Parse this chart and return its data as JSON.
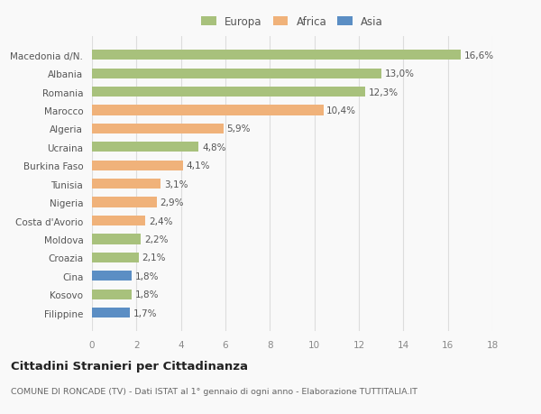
{
  "countries": [
    "Filippine",
    "Kosovo",
    "Cina",
    "Croazia",
    "Moldova",
    "Costa d'Avorio",
    "Nigeria",
    "Tunisia",
    "Burkina Faso",
    "Ucraina",
    "Algeria",
    "Marocco",
    "Romania",
    "Albania",
    "Macedonia d/N."
  ],
  "values": [
    1.7,
    1.8,
    1.8,
    2.1,
    2.2,
    2.4,
    2.9,
    3.1,
    4.1,
    4.8,
    5.9,
    10.4,
    12.3,
    13.0,
    16.6
  ],
  "labels": [
    "1,7%",
    "1,8%",
    "1,8%",
    "2,1%",
    "2,2%",
    "2,4%",
    "2,9%",
    "3,1%",
    "4,1%",
    "4,8%",
    "5,9%",
    "10,4%",
    "12,3%",
    "13,0%",
    "16,6%"
  ],
  "continents": [
    "Asia",
    "Europa",
    "Asia",
    "Europa",
    "Europa",
    "Africa",
    "Africa",
    "Africa",
    "Africa",
    "Europa",
    "Africa",
    "Africa",
    "Europa",
    "Europa",
    "Europa"
  ],
  "colors": {
    "Europa": "#a8c17c",
    "Africa": "#f0b27a",
    "Asia": "#5b8ec4"
  },
  "legend_labels": [
    "Europa",
    "Africa",
    "Asia"
  ],
  "legend_colors": [
    "#a8c17c",
    "#f0b27a",
    "#5b8ec4"
  ],
  "xlim": [
    0,
    18
  ],
  "xticks": [
    0,
    2,
    4,
    6,
    8,
    10,
    12,
    14,
    16,
    18
  ],
  "title": "Cittadini Stranieri per Cittadinanza",
  "subtitle": "COMUNE DI RONCADE (TV) - Dati ISTAT al 1° gennaio di ogni anno - Elaborazione TUTTITALIA.IT",
  "background_color": "#f9f9f9",
  "bar_height": 0.55,
  "label_fontsize": 7.5,
  "tick_fontsize": 7.5,
  "legend_fontsize": 8.5
}
